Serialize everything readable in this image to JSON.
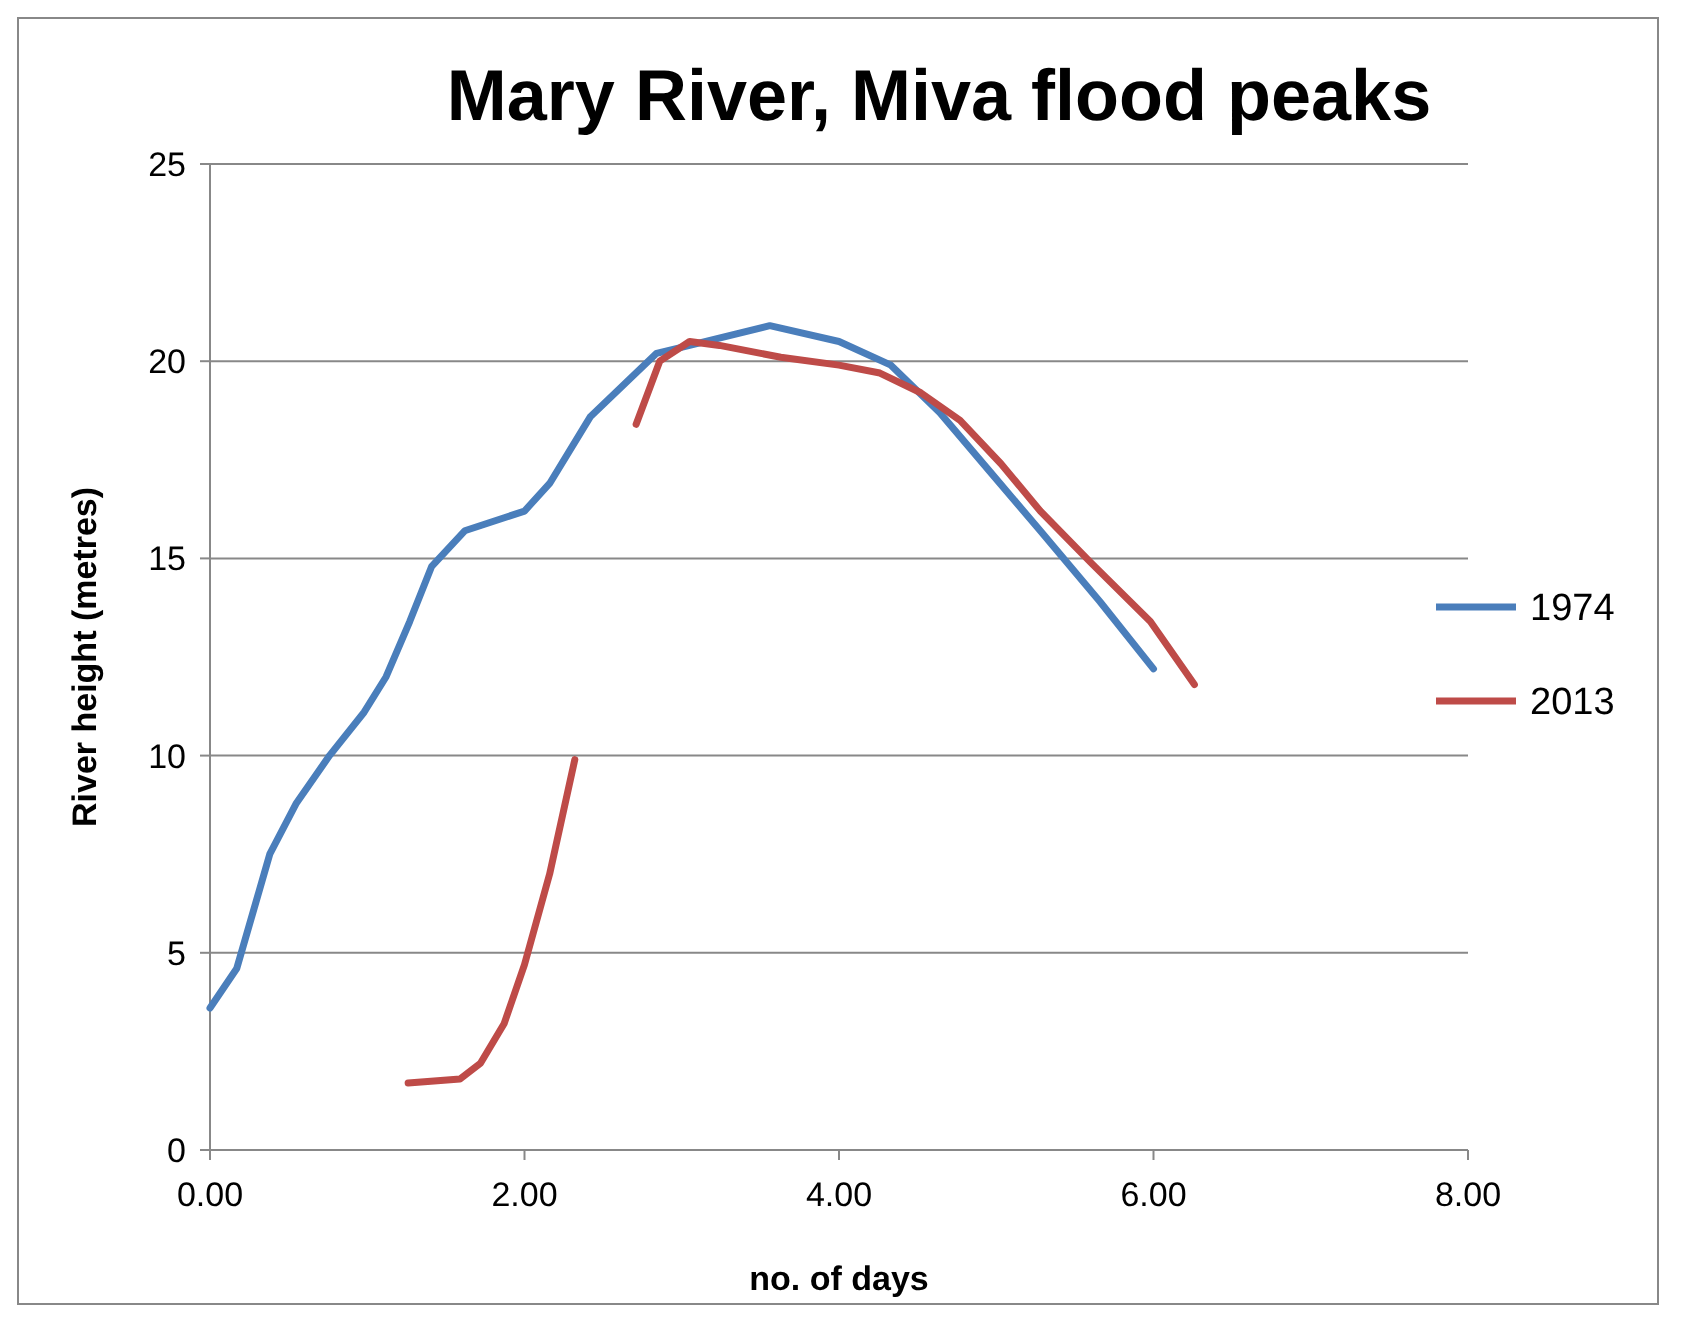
{
  "chart_data": {
    "type": "line",
    "title": "Mary River, Miva flood peaks",
    "xlabel": "no. of days",
    "ylabel": "River height (metres)",
    "xlim": [
      0,
      8
    ],
    "xticks": [
      {
        "value": 0,
        "label": "0.00"
      },
      {
        "value": 2,
        "label": "2.00"
      },
      {
        "value": 4,
        "label": "4.00"
      },
      {
        "value": 6,
        "label": "6.00"
      },
      {
        "value": 8,
        "label": "8.00"
      }
    ],
    "ylim": [
      0,
      25
    ],
    "yticks": [
      0,
      5,
      10,
      15,
      20,
      25
    ],
    "grid": "y",
    "legend": "right",
    "marker": "none",
    "line_style": "solid",
    "series": [
      {
        "name": "1974",
        "color": "#4a7ebb",
        "x": [
          0,
          0.17,
          0.38,
          0.55,
          0.76,
          0.98,
          1.12,
          1.27,
          1.41,
          1.62,
          2.0,
          2.16,
          2.42,
          2.84,
          3.05,
          3.56,
          4.0,
          4.33,
          4.64,
          4.96,
          5.28,
          5.66,
          6.0
        ],
        "values": [
          3.6,
          4.6,
          7.5,
          8.8,
          10.0,
          11.1,
          12.0,
          13.4,
          14.8,
          15.7,
          16.2,
          16.9,
          18.6,
          20.2,
          20.4,
          20.9,
          20.5,
          19.9,
          18.7,
          17.2,
          15.7,
          13.9,
          12.2
        ]
      },
      {
        "name": "2013",
        "color": "#be4b48",
        "x": [
          1.26,
          1.59,
          1.72,
          1.87,
          2.0,
          2.16,
          2.32,
          null,
          2.71,
          2.86,
          3.05,
          3.24,
          3.63,
          4.0,
          4.26,
          4.52,
          4.77,
          5.03,
          5.28,
          5.6,
          5.98,
          6.26
        ],
        "values": [
          1.7,
          1.8,
          2.2,
          3.2,
          4.7,
          7.0,
          9.9,
          null,
          18.4,
          20.0,
          20.5,
          20.4,
          20.1,
          19.9,
          19.7,
          19.2,
          18.5,
          17.4,
          16.2,
          14.9,
          13.4,
          11.8
        ]
      }
    ]
  }
}
